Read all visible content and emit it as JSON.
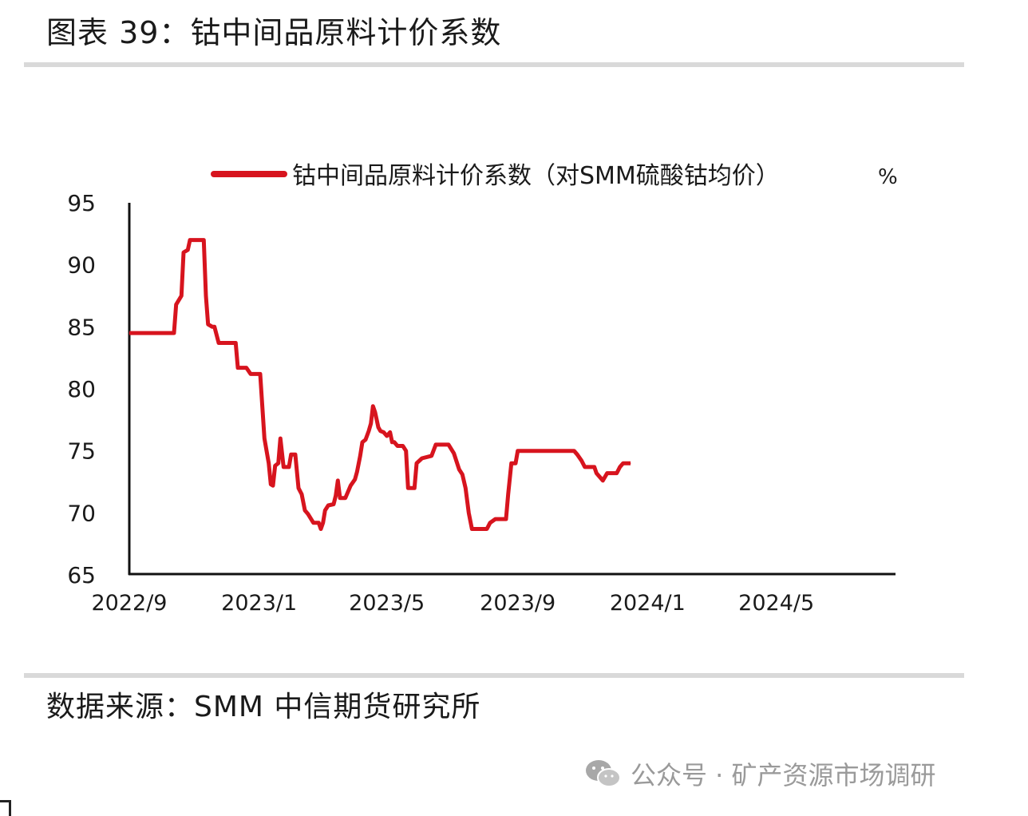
{
  "figure": {
    "title": "图表 39：钴中间品原料计价系数",
    "source": "数据来源：SMM 中信期货研究所",
    "watermark": "公众号 · 矿产资源市场调研",
    "watermark_icon": "wechat-icon"
  },
  "chart_data": {
    "type": "line",
    "title": "",
    "xlabel": "",
    "ylabel": "",
    "unit": "%",
    "ylim": [
      65,
      95
    ],
    "yticks": [
      95,
      90,
      85,
      80,
      75,
      70,
      65
    ],
    "xlim": [
      "2022-09-01",
      "2024-08-21"
    ],
    "xticks": [
      {
        "label": "2022/9",
        "date": "2022-09-01"
      },
      {
        "label": "2023/1",
        "date": "2023-01-01"
      },
      {
        "label": "2023/5",
        "date": "2023-05-01"
      },
      {
        "label": "2023/9",
        "date": "2023-09-01"
      },
      {
        "label": "2024/1",
        "date": "2024-01-01"
      },
      {
        "label": "2024/5",
        "date": "2024-05-01"
      }
    ],
    "grid": false,
    "legend_position": "top",
    "series": [
      {
        "name": "钴中间品原料计价系数（对SMM硫酸钴均价）",
        "color": "#d7141e",
        "points": [
          [
            "2022-09-01",
            84.5
          ],
          [
            "2022-10-13",
            84.5
          ],
          [
            "2022-10-15",
            86.8
          ],
          [
            "2022-10-20",
            87.5
          ],
          [
            "2022-10-22",
            91.0
          ],
          [
            "2022-10-26",
            91.2
          ],
          [
            "2022-10-28",
            92.0
          ],
          [
            "2022-11-10",
            92.0
          ],
          [
            "2022-11-12",
            87.5
          ],
          [
            "2022-11-14",
            85.2
          ],
          [
            "2022-11-18",
            85.0
          ],
          [
            "2022-11-20",
            85.0
          ],
          [
            "2022-11-24",
            83.7
          ],
          [
            "2022-12-05",
            83.7
          ],
          [
            "2022-12-10",
            83.7
          ],
          [
            "2022-12-12",
            81.7
          ],
          [
            "2022-12-20",
            81.7
          ],
          [
            "2022-12-24",
            81.2
          ],
          [
            "2022-12-30",
            81.2
          ],
          [
            "2023-01-02",
            81.2
          ],
          [
            "2023-01-06",
            76.0
          ],
          [
            "2023-01-08",
            75.0
          ],
          [
            "2023-01-10",
            74.0
          ],
          [
            "2023-01-12",
            72.3
          ],
          [
            "2023-01-14",
            72.2
          ],
          [
            "2023-01-16",
            73.8
          ],
          [
            "2023-01-19",
            74.0
          ],
          [
            "2023-01-21",
            76.0
          ],
          [
            "2023-01-24",
            73.7
          ],
          [
            "2023-01-29",
            73.7
          ],
          [
            "2023-01-31",
            74.7
          ],
          [
            "2023-02-04",
            74.7
          ],
          [
            "2023-02-07",
            72.0
          ],
          [
            "2023-02-10",
            71.5
          ],
          [
            "2023-02-13",
            70.2
          ],
          [
            "2023-02-16",
            69.9
          ],
          [
            "2023-02-21",
            69.2
          ],
          [
            "2023-02-26",
            69.2
          ],
          [
            "2023-02-28",
            68.7
          ],
          [
            "2023-03-02",
            69.2
          ],
          [
            "2023-03-04",
            70.2
          ],
          [
            "2023-03-07",
            70.6
          ],
          [
            "2023-03-12",
            70.7
          ],
          [
            "2023-03-14",
            71.4
          ],
          [
            "2023-03-16",
            72.6
          ],
          [
            "2023-03-18",
            71.2
          ],
          [
            "2023-03-23",
            71.2
          ],
          [
            "2023-03-28",
            72.2
          ],
          [
            "2023-04-01",
            72.7
          ],
          [
            "2023-04-03",
            73.3
          ],
          [
            "2023-04-06",
            74.6
          ],
          [
            "2023-04-08",
            75.7
          ],
          [
            "2023-04-11",
            75.9
          ],
          [
            "2023-04-14",
            76.6
          ],
          [
            "2023-04-16",
            77.2
          ],
          [
            "2023-04-18",
            78.6
          ],
          [
            "2023-04-20",
            78.1
          ],
          [
            "2023-04-23",
            76.9
          ],
          [
            "2023-04-25",
            76.6
          ],
          [
            "2023-04-28",
            76.5
          ],
          [
            "2023-05-01",
            76.2
          ],
          [
            "2023-05-04",
            76.5
          ],
          [
            "2023-05-06",
            75.7
          ],
          [
            "2023-05-08",
            75.7
          ],
          [
            "2023-05-11",
            75.4
          ],
          [
            "2023-05-16",
            75.4
          ],
          [
            "2023-05-19",
            75.0
          ],
          [
            "2023-05-21",
            72.0
          ],
          [
            "2023-05-27",
            72.0
          ],
          [
            "2023-05-29",
            74.0
          ],
          [
            "2023-06-03",
            74.4
          ],
          [
            "2023-06-12",
            74.6
          ],
          [
            "2023-06-16",
            75.5
          ],
          [
            "2023-06-28",
            75.5
          ],
          [
            "2023-07-03",
            74.8
          ],
          [
            "2023-07-08",
            73.5
          ],
          [
            "2023-07-11",
            73.1
          ],
          [
            "2023-07-14",
            72.0
          ],
          [
            "2023-07-17",
            70.0
          ],
          [
            "2023-07-20",
            68.7
          ],
          [
            "2023-08-03",
            68.7
          ],
          [
            "2023-08-06",
            69.2
          ],
          [
            "2023-08-11",
            69.5
          ],
          [
            "2023-08-21",
            69.5
          ],
          [
            "2023-08-23",
            71.5
          ],
          [
            "2023-08-26",
            74.0
          ],
          [
            "2023-08-30",
            74.0
          ],
          [
            "2023-09-01",
            75.0
          ],
          [
            "2023-10-24",
            75.0
          ],
          [
            "2023-10-27",
            74.7
          ],
          [
            "2023-10-31",
            74.2
          ],
          [
            "2023-11-03",
            73.7
          ],
          [
            "2023-11-12",
            73.7
          ],
          [
            "2023-11-14",
            73.2
          ],
          [
            "2023-11-18",
            72.8
          ],
          [
            "2023-11-20",
            72.6
          ],
          [
            "2023-11-24",
            73.2
          ],
          [
            "2023-12-03",
            73.2
          ],
          [
            "2023-12-06",
            73.7
          ],
          [
            "2023-12-09",
            74.0
          ],
          [
            "2023-12-16",
            74.0
          ]
        ]
      }
    ]
  }
}
